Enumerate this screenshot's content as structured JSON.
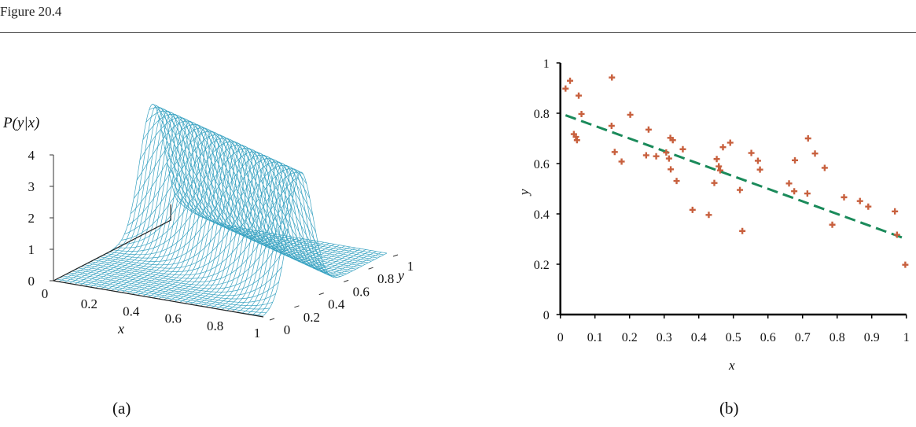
{
  "header": {
    "title": "Figure 20.4"
  },
  "chart_data": [
    {
      "type": "surface",
      "panel_label": "(a)",
      "zlabel": "P(y|x)",
      "xlabel": "x",
      "ylabel": "y",
      "function": "Gaussian in y with mean 0.8-0.5x, sigma 0.1",
      "x_ticks": [
        "0",
        "0.2",
        "0.4",
        "0.6",
        "0.8",
        "1"
      ],
      "y_ticks": [
        "0",
        "0.2",
        "0.4",
        "0.6",
        "0.8",
        "1"
      ],
      "z_ticks": [
        "0",
        "1",
        "2",
        "3",
        "4"
      ],
      "xlim": [
        0,
        1
      ],
      "ylim": [
        0,
        1
      ],
      "zlim": [
        0,
        4
      ],
      "mesh_color": "#3aa3c2"
    },
    {
      "type": "scatter",
      "panel_label": "(b)",
      "xlabel": "x",
      "ylabel": "y",
      "xlim": [
        0,
        1
      ],
      "ylim": [
        0,
        1
      ],
      "x_ticks": [
        "0",
        "0.1",
        "0.2",
        "0.3",
        "0.4",
        "0.5",
        "0.6",
        "0.7",
        "0.8",
        "0.9",
        "1"
      ],
      "y_ticks": [
        "0",
        "0.2",
        "0.4",
        "0.6",
        "0.8",
        "1"
      ],
      "point_color": "#c8603e",
      "line_color": "#1a8a5a",
      "points": [
        [
          0.015,
          0.898
        ],
        [
          0.028,
          0.929
        ],
        [
          0.053,
          0.87
        ],
        [
          0.061,
          0.797
        ],
        [
          0.039,
          0.717
        ],
        [
          0.045,
          0.706
        ],
        [
          0.048,
          0.693
        ],
        [
          0.149,
          0.942
        ],
        [
          0.148,
          0.75
        ],
        [
          0.157,
          0.646
        ],
        [
          0.177,
          0.608
        ],
        [
          0.202,
          0.794
        ],
        [
          0.255,
          0.735
        ],
        [
          0.248,
          0.633
        ],
        [
          0.277,
          0.629
        ],
        [
          0.306,
          0.644
        ],
        [
          0.314,
          0.62
        ],
        [
          0.318,
          0.702
        ],
        [
          0.325,
          0.693
        ],
        [
          0.319,
          0.577
        ],
        [
          0.336,
          0.531
        ],
        [
          0.354,
          0.657
        ],
        [
          0.382,
          0.416
        ],
        [
          0.429,
          0.396
        ],
        [
          0.445,
          0.523
        ],
        [
          0.452,
          0.618
        ],
        [
          0.458,
          0.589
        ],
        [
          0.462,
          0.573
        ],
        [
          0.47,
          0.665
        ],
        [
          0.491,
          0.683
        ],
        [
          0.519,
          0.495
        ],
        [
          0.526,
          0.332
        ],
        [
          0.552,
          0.642
        ],
        [
          0.571,
          0.611
        ],
        [
          0.577,
          0.576
        ],
        [
          0.661,
          0.521
        ],
        [
          0.676,
          0.49
        ],
        [
          0.678,
          0.613
        ],
        [
          0.714,
          0.481
        ],
        [
          0.716,
          0.7
        ],
        [
          0.736,
          0.64
        ],
        [
          0.764,
          0.583
        ],
        [
          0.786,
          0.357
        ],
        [
          0.82,
          0.466
        ],
        [
          0.866,
          0.451
        ],
        [
          0.89,
          0.429
        ],
        [
          0.967,
          0.41
        ],
        [
          0.973,
          0.317
        ],
        [
          0.997,
          0.198
        ]
      ],
      "trend_line": {
        "x": [
          0.015,
          0.992
        ],
        "y": [
          0.792,
          0.304
        ],
        "style": "dashed"
      }
    }
  ]
}
